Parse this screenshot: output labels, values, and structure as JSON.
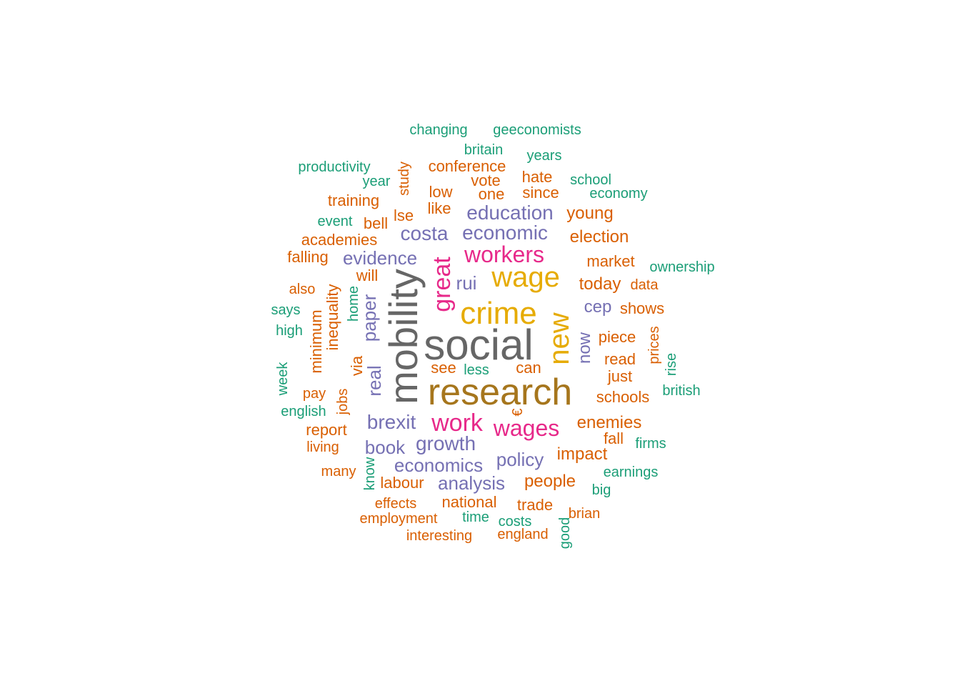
{
  "palette": {
    "gray": "#666666",
    "gold": "#a6761d",
    "mustard": "#e6ab02",
    "pink": "#e7298a",
    "purple": "#7570b3",
    "orange": "#d95f02",
    "teal": "#1b9e77"
  },
  "words": [
    {
      "text": "social",
      "color": "gray"
    },
    {
      "text": "research",
      "color": "gold"
    },
    {
      "text": "mobility",
      "color": "gray"
    },
    {
      "text": "crime",
      "color": "mustard"
    },
    {
      "text": "wage",
      "color": "mustard"
    },
    {
      "text": "new",
      "color": "mustard"
    },
    {
      "text": "great",
      "color": "pink"
    },
    {
      "text": "workers",
      "color": "pink"
    },
    {
      "text": "work",
      "color": "pink"
    },
    {
      "text": "wages",
      "color": "pink"
    },
    {
      "text": "education",
      "color": "purple"
    },
    {
      "text": "economic",
      "color": "purple"
    },
    {
      "text": "costa",
      "color": "purple"
    },
    {
      "text": "evidence",
      "color": "purple"
    },
    {
      "text": "paper",
      "color": "purple"
    },
    {
      "text": "real",
      "color": "purple"
    },
    {
      "text": "brexit",
      "color": "purple"
    },
    {
      "text": "growth",
      "color": "purple"
    },
    {
      "text": "book",
      "color": "purple"
    },
    {
      "text": "economics",
      "color": "purple"
    },
    {
      "text": "policy",
      "color": "purple"
    },
    {
      "text": "analysis",
      "color": "purple"
    },
    {
      "text": "now",
      "color": "purple"
    },
    {
      "text": "cep",
      "color": "purple"
    },
    {
      "text": "rui",
      "color": "purple"
    },
    {
      "text": "changing",
      "color": "teal"
    },
    {
      "text": "geeconomists",
      "color": "teal"
    },
    {
      "text": "britain",
      "color": "teal"
    },
    {
      "text": "years",
      "color": "teal"
    },
    {
      "text": "productivity",
      "color": "teal"
    },
    {
      "text": "conference",
      "color": "orange"
    },
    {
      "text": "year",
      "color": "teal"
    },
    {
      "text": "study",
      "color": "orange"
    },
    {
      "text": "vote",
      "color": "orange"
    },
    {
      "text": "hate",
      "color": "orange"
    },
    {
      "text": "school",
      "color": "teal"
    },
    {
      "text": "training",
      "color": "orange"
    },
    {
      "text": "low",
      "color": "orange"
    },
    {
      "text": "one",
      "color": "orange"
    },
    {
      "text": "since",
      "color": "orange"
    },
    {
      "text": "economy",
      "color": "teal"
    },
    {
      "text": "like",
      "color": "orange"
    },
    {
      "text": "event",
      "color": "teal"
    },
    {
      "text": "lse",
      "color": "orange"
    },
    {
      "text": "bell",
      "color": "orange"
    },
    {
      "text": "young",
      "color": "orange"
    },
    {
      "text": "academies",
      "color": "orange"
    },
    {
      "text": "election",
      "color": "orange"
    },
    {
      "text": "falling",
      "color": "orange"
    },
    {
      "text": "market",
      "color": "orange"
    },
    {
      "text": "ownership",
      "color": "teal"
    },
    {
      "text": "will",
      "color": "orange"
    },
    {
      "text": "also",
      "color": "orange"
    },
    {
      "text": "today",
      "color": "orange"
    },
    {
      "text": "data",
      "color": "orange"
    },
    {
      "text": "inequality",
      "color": "orange"
    },
    {
      "text": "home",
      "color": "teal"
    },
    {
      "text": "says",
      "color": "teal"
    },
    {
      "text": "shows",
      "color": "orange"
    },
    {
      "text": "minimum",
      "color": "orange"
    },
    {
      "text": "high",
      "color": "teal"
    },
    {
      "text": "piece",
      "color": "orange"
    },
    {
      "text": "prices",
      "color": "orange"
    },
    {
      "text": "read",
      "color": "orange"
    },
    {
      "text": "rise",
      "color": "teal"
    },
    {
      "text": "via",
      "color": "orange"
    },
    {
      "text": "week",
      "color": "teal"
    },
    {
      "text": "see",
      "color": "orange"
    },
    {
      "text": "less",
      "color": "teal"
    },
    {
      "text": "can",
      "color": "orange"
    },
    {
      "text": "just",
      "color": "orange"
    },
    {
      "text": "pay",
      "color": "orange"
    },
    {
      "text": "jobs",
      "color": "orange"
    },
    {
      "text": "schools",
      "color": "orange"
    },
    {
      "text": "british",
      "color": "teal"
    },
    {
      "text": "english",
      "color": "teal"
    },
    {
      "text": "€",
      "color": "orange"
    },
    {
      "text": "report",
      "color": "orange"
    },
    {
      "text": "enemies",
      "color": "orange"
    },
    {
      "text": "fall",
      "color": "orange"
    },
    {
      "text": "firms",
      "color": "teal"
    },
    {
      "text": "living",
      "color": "orange"
    },
    {
      "text": "impact",
      "color": "orange"
    },
    {
      "text": "know",
      "color": "teal"
    },
    {
      "text": "many",
      "color": "orange"
    },
    {
      "text": "earnings",
      "color": "teal"
    },
    {
      "text": "labour",
      "color": "orange"
    },
    {
      "text": "people",
      "color": "orange"
    },
    {
      "text": "big",
      "color": "teal"
    },
    {
      "text": "effects",
      "color": "orange"
    },
    {
      "text": "national",
      "color": "orange"
    },
    {
      "text": "trade",
      "color": "orange"
    },
    {
      "text": "employment",
      "color": "orange"
    },
    {
      "text": "time",
      "color": "teal"
    },
    {
      "text": "costs",
      "color": "teal"
    },
    {
      "text": "brian",
      "color": "orange"
    },
    {
      "text": "interesting",
      "color": "orange"
    },
    {
      "text": "england",
      "color": "orange"
    },
    {
      "text": "good",
      "color": "teal"
    }
  ]
}
